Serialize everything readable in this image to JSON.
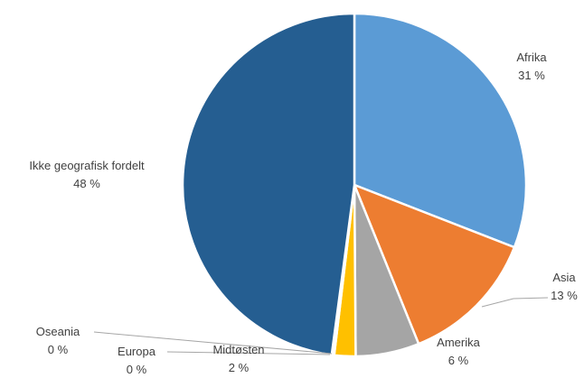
{
  "chart_data": {
    "type": "pie",
    "title": "",
    "unit": "%",
    "slices": [
      {
        "name": "Afrika",
        "value": 31,
        "value_label": "31 %",
        "color": "#5b9bd5"
      },
      {
        "name": "Asia",
        "value": 13,
        "value_label": "13 %",
        "color": "#ed7d31"
      },
      {
        "name": "Amerika",
        "value": 6,
        "value_label": "6 %",
        "color": "#a5a5a5"
      },
      {
        "name": "Midtøsten",
        "value": 2,
        "value_label": "2 %",
        "color": "#ffc000"
      },
      {
        "name": "Europa",
        "value": 0,
        "value_label": "0 %",
        "color": "#4472c4"
      },
      {
        "name": "Oseania",
        "value": 0,
        "value_label": "0 %",
        "color": "#70ad47"
      },
      {
        "name": "Ikke geografisk fordelt",
        "value": 48,
        "value_label": "48 %",
        "color": "#255e91"
      }
    ]
  }
}
